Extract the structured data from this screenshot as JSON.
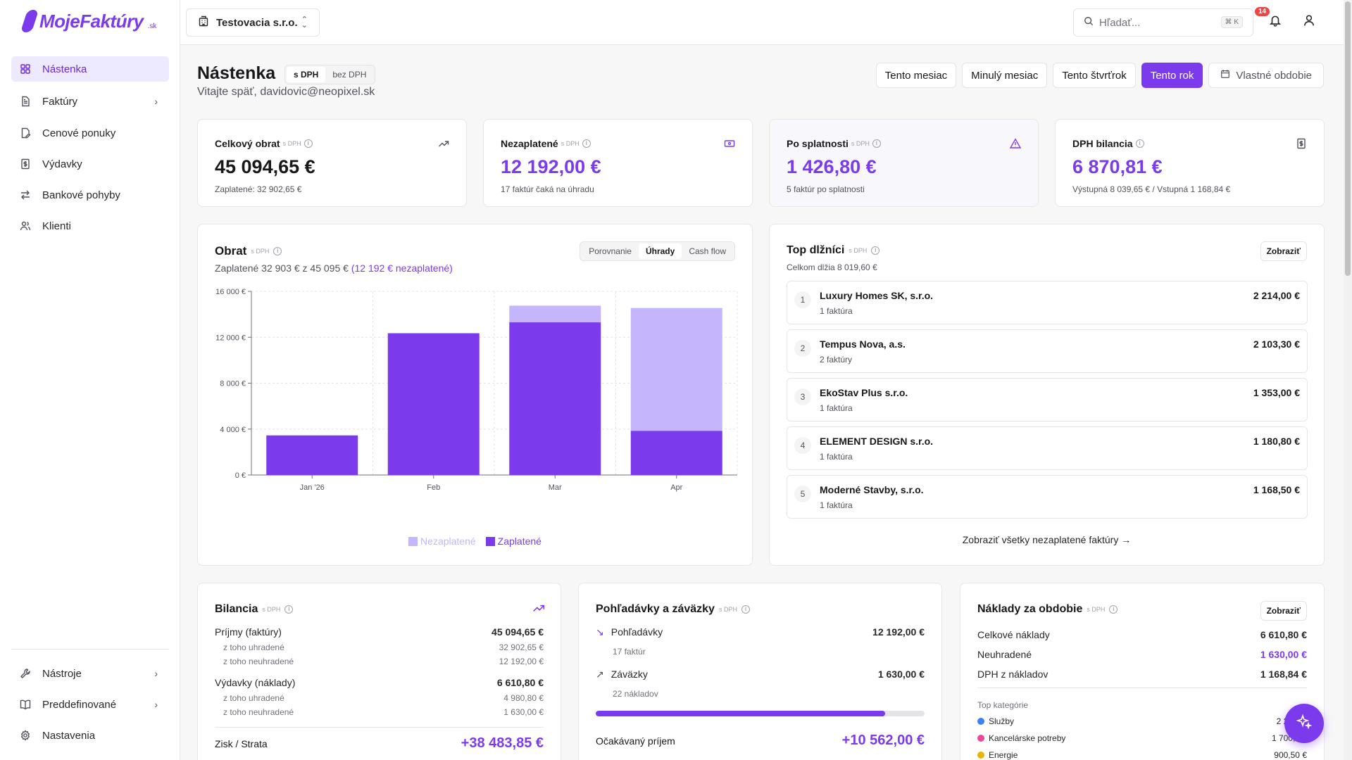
{
  "app": {
    "logo_text": "MojeFaktúry",
    "logo_tld": ".sk"
  },
  "sidebar": {
    "items": [
      {
        "label": "Nástenka",
        "icon": "grid-icon",
        "active": true
      },
      {
        "label": "Faktúry",
        "icon": "file-icon",
        "has_children": true
      },
      {
        "label": "Cenové ponuky",
        "icon": "file-edit-icon"
      },
      {
        "label": "Výdavky",
        "icon": "receipt-icon"
      },
      {
        "label": "Bankové pohyby",
        "icon": "arrows-icon"
      },
      {
        "label": "Klienti",
        "icon": "users-icon"
      }
    ],
    "bottom": [
      {
        "label": "Nástroje",
        "icon": "wrench-icon"
      },
      {
        "label": "Preddefinované",
        "icon": "book-icon"
      },
      {
        "label": "Nastavenia",
        "icon": "gear-icon"
      }
    ]
  },
  "topbar": {
    "company": "Testovacia s.r.o.",
    "search_placeholder": "Hľadať...",
    "search_shortcut": "⌘ K",
    "notifications": "14"
  },
  "header": {
    "title": "Nástenka",
    "vat_on": "s DPH",
    "vat_off": "bez DPH",
    "welcome": "Vitajte späť, davidovic@neopixel.sk",
    "periods": [
      "Tento mesiac",
      "Minulý mesiac",
      "Tento štvrťrok",
      "Tento rok"
    ],
    "active_period": "Tento rok",
    "custom_period": "Vlastné obdobie"
  },
  "kpis": [
    {
      "label": "Celkový obrat",
      "tag": "s DPH",
      "value": "45 094,65 €",
      "sub": "Zaplatené: 32 902,65 €",
      "icon": "trend-up-icon"
    },
    {
      "label": "Nezaplatené",
      "tag": "s DPH",
      "value": "12 192,00 €",
      "sub": "17 faktúr čaká na úhradu",
      "icon": "banknote-icon"
    },
    {
      "label": "Po splatnosti",
      "tag": "s DPH",
      "value": "1 426,80 €",
      "sub": "5 faktúr po splatnosti",
      "icon": "warning-icon"
    },
    {
      "label": "DPH bilancia",
      "tag": "",
      "value": "6 870,81 €",
      "sub": "Výstupná 8 039,65 € / Vstupná 1 168,84 €",
      "icon": "calculator-icon"
    }
  ],
  "revenue": {
    "title": "Obrat",
    "tag": "s DPH",
    "sub_prefix": "Zaplatené 32 903 € z 45 095 €",
    "sub_highlight": "(12 192 € nezaplatené)",
    "tabs": [
      "Porovnanie",
      "Úhrady",
      "Cash flow"
    ],
    "active_tab": "Úhrady",
    "legend_unpaid": "Nezaplatené",
    "legend_paid": "Zaplatené",
    "colors": {
      "paid": "#7c3aed",
      "unpaid": "#c4b5fd"
    }
  },
  "chart_data": {
    "type": "bar",
    "stacked": true,
    "categories": [
      "Jan '26",
      "Feb",
      "Mar",
      "Apr"
    ],
    "series": [
      {
        "name": "Zaplatené",
        "values": [
          3450,
          12350,
          13300,
          3850
        ]
      },
      {
        "name": "Nezaplatené",
        "values": [
          0,
          0,
          1450,
          10700
        ]
      }
    ],
    "yticks": [
      "0 €",
      "4 000 €",
      "8 000 €",
      "12 000 €",
      "16 000 €"
    ],
    "ylim": [
      0,
      16000
    ],
    "grid": true,
    "legend": "bottom"
  },
  "debtors": {
    "title": "Top dlžníci",
    "tag": "s DPH",
    "total": "Celkom dlžia 8 019,60 €",
    "show_button": "Zobraziť",
    "items": [
      {
        "rank": "1",
        "name": "Luxury Homes SK, s.r.o.",
        "count": "1 faktúra",
        "amount": "2 214,00 €"
      },
      {
        "rank": "2",
        "name": "Tempus Nova, a.s.",
        "count": "2 faktúry",
        "amount": "2 103,30 €"
      },
      {
        "rank": "3",
        "name": "EkoStav Plus s.r.o.",
        "count": "1 faktúra",
        "amount": "1 353,00 €"
      },
      {
        "rank": "4",
        "name": "ELEMENT DESIGN s.r.o.",
        "count": "1 faktúra",
        "amount": "1 180,80 €"
      },
      {
        "rank": "5",
        "name": "Moderné Stavby, s.r.o.",
        "count": "1 faktúra",
        "amount": "1 168,50 €"
      }
    ],
    "view_all": "Zobraziť všetky nezaplatené faktúry →"
  },
  "balance": {
    "title": "Bilancia",
    "tag": "s DPH",
    "income_label": "Príjmy (faktúry)",
    "income": "45 094,65 €",
    "income_paid_label": "z toho uhradené",
    "income_paid": "32 902,65 €",
    "income_unpaid_label": "z toho neuhradené",
    "income_unpaid": "12 192,00 €",
    "expense_label": "Výdavky (náklady)",
    "expense": "6 610,80 €",
    "expense_paid_label": "z toho uhradené",
    "expense_paid": "4 980,80 €",
    "expense_unpaid_label": "z toho neuhradené",
    "expense_unpaid": "1 630,00 €",
    "profit_label": "Zisk / Strata",
    "profit": "+38 483,85 €"
  },
  "receivables": {
    "title": "Pohľadávky a záväzky",
    "tag": "s DPH",
    "recv_label": "Pohľadávky",
    "recv_value": "12 192,00 €",
    "recv_sub": "17 faktúr",
    "pay_label": "Záväzky",
    "pay_value": "1 630,00 €",
    "pay_sub": "22 nákladov",
    "ratio": 0.88,
    "expected_label": "Očakávaný príjem",
    "expected_value": "+10 562,00 €"
  },
  "costs": {
    "title": "Náklady za obdobie",
    "tag": "s DPH",
    "show_button": "Zobraziť",
    "total_label": "Celkové náklady",
    "total": "6 610,80 €",
    "unpaid_label": "Neuhradené",
    "unpaid": "1 630,00 €",
    "vat_label": "DPH z nákladov",
    "vat": "1 168,84 €",
    "categories_title": "Top kategórie",
    "categories": [
      {
        "name": "Služby",
        "value": "2 297,...",
        "color": "#3b82f6"
      },
      {
        "name": "Kancelárske potreby",
        "value": "1 700,0...",
        "color": "#ec4899"
      },
      {
        "name": "Energie",
        "value": "900,50 €",
        "color": "#eab308"
      }
    ]
  }
}
